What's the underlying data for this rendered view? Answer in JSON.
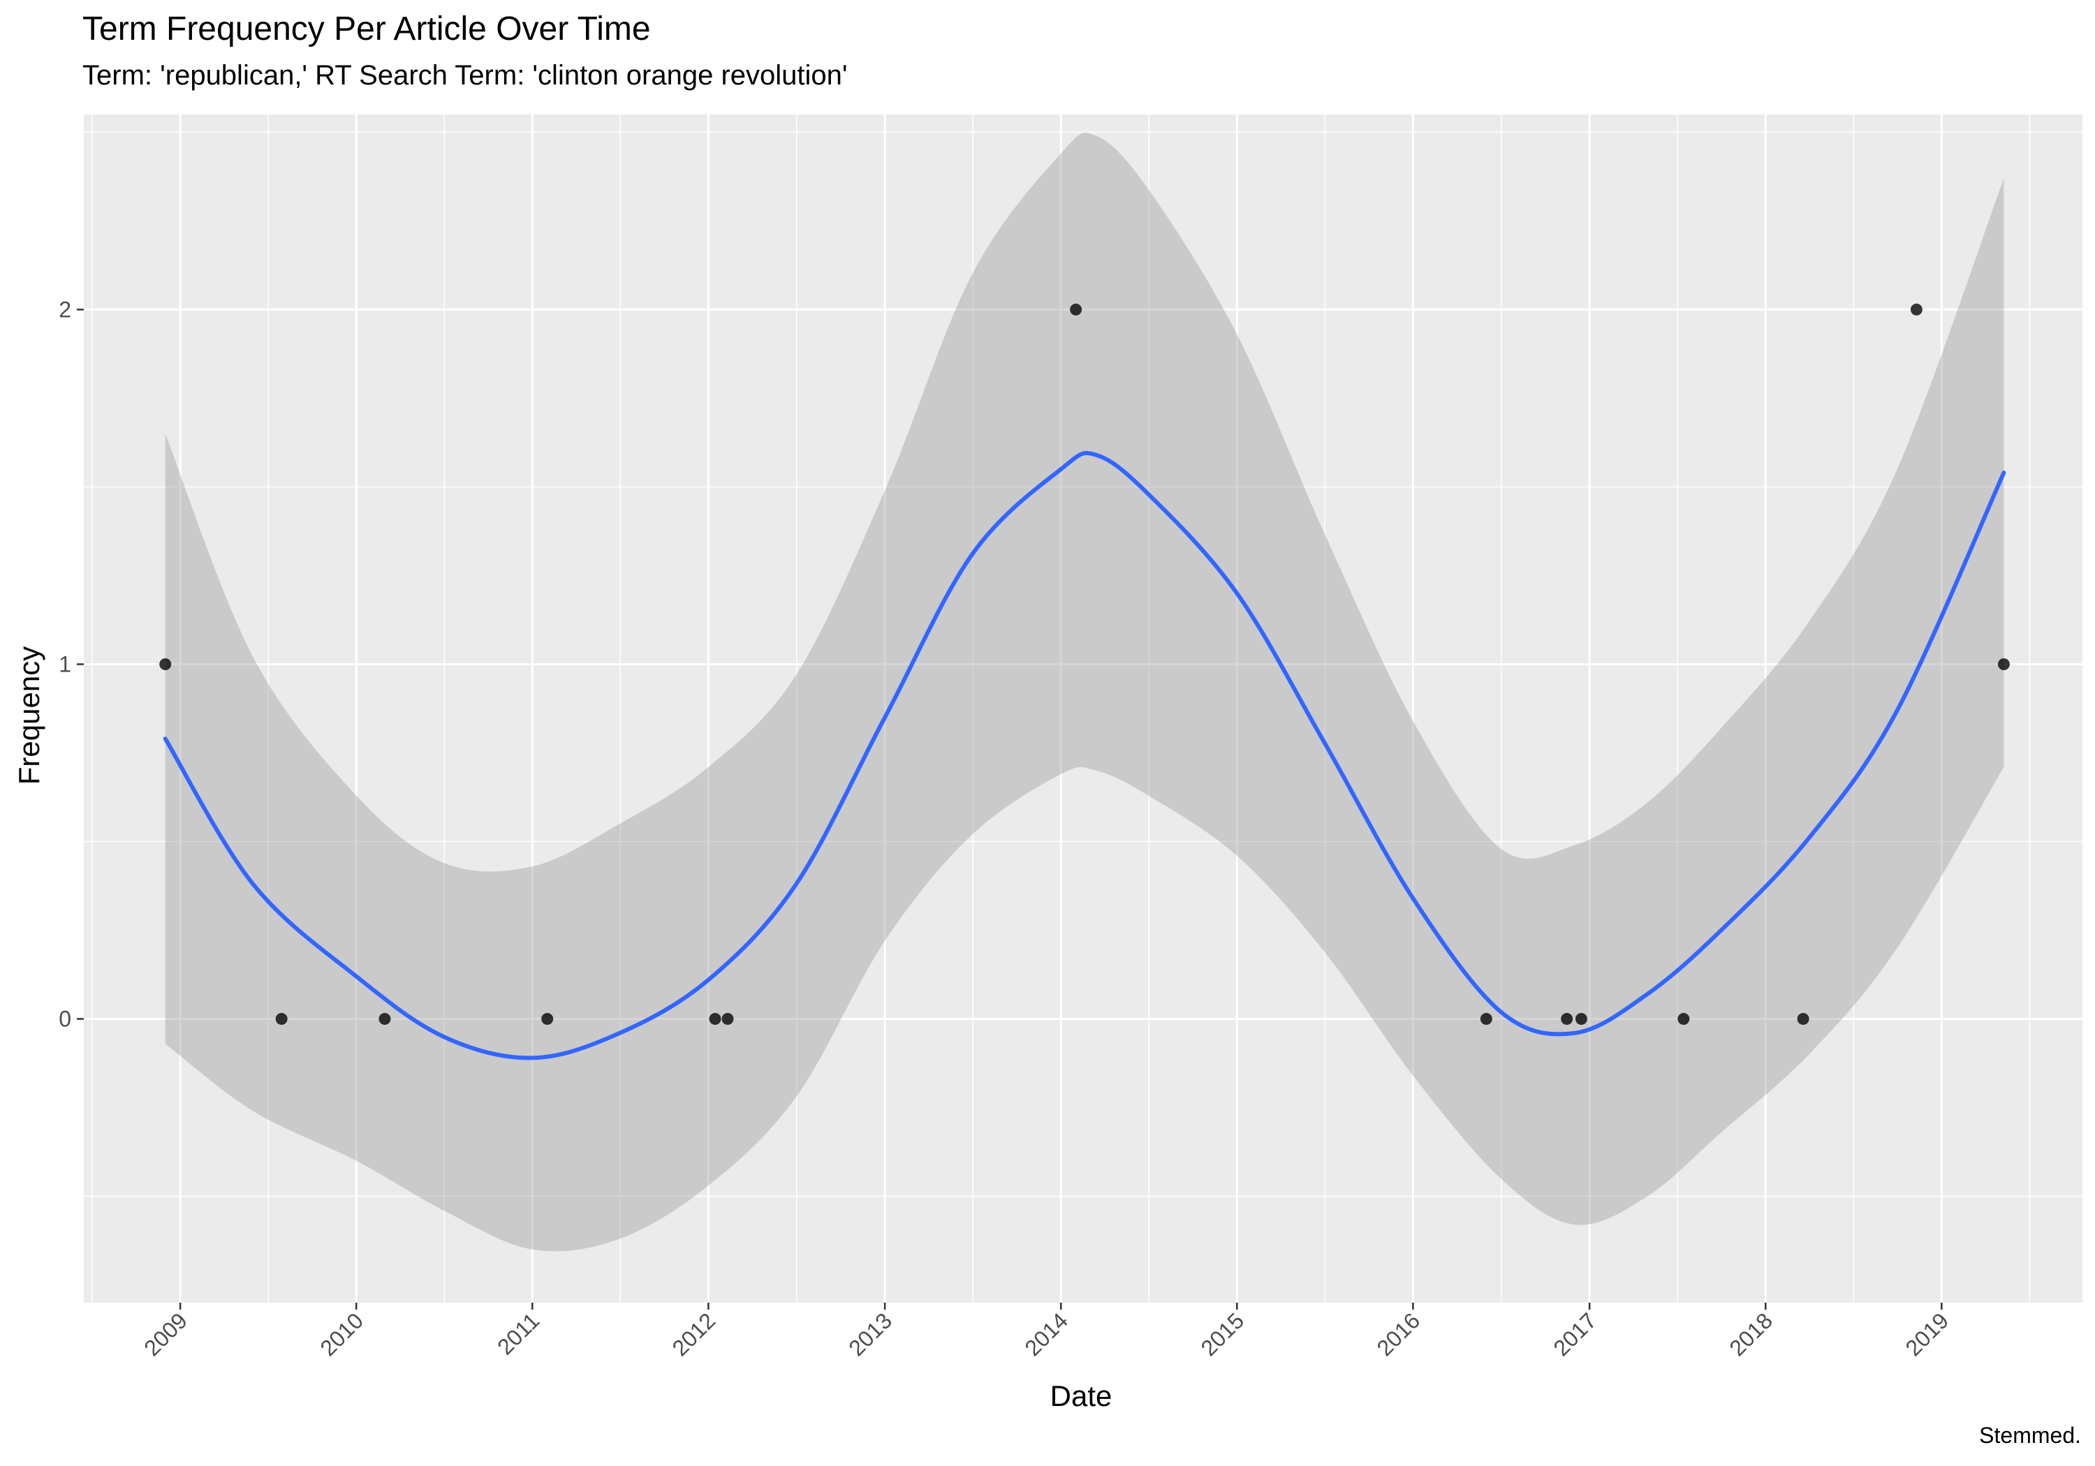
{
  "chart_data": {
    "type": "scatter",
    "title": "Term Frequency Per Article Over Time",
    "subtitle": "Term: 'republican,' RT Search Term: 'clinton orange revolution'",
    "caption": "Stemmed.",
    "xlabel": "Date",
    "ylabel": "Frequency",
    "x_ticks": [
      "2009",
      "2010",
      "2011",
      "2012",
      "2013",
      "2014",
      "2015",
      "2016",
      "2017",
      "2018",
      "2019"
    ],
    "y_ticks": [
      "0",
      "1",
      "2"
    ],
    "xlim": [
      "2008-06-15",
      "2019-10-20"
    ],
    "ylim": [
      -0.8,
      2.55
    ],
    "grid": true,
    "points": [
      {
        "x": "2008-12-01",
        "y": 1
      },
      {
        "x": "2009-07-30",
        "y": 0
      },
      {
        "x": "2010-03-01",
        "y": 0
      },
      {
        "x": "2011-02-01",
        "y": 0
      },
      {
        "x": "2012-01-15",
        "y": 0
      },
      {
        "x": "2012-02-10",
        "y": 0
      },
      {
        "x": "2014-02-01",
        "y": 2
      },
      {
        "x": "2016-06-01",
        "y": 0
      },
      {
        "x": "2016-11-15",
        "y": 0
      },
      {
        "x": "2016-12-15",
        "y": 0
      },
      {
        "x": "2017-07-15",
        "y": 0
      },
      {
        "x": "2018-03-20",
        "y": 0
      },
      {
        "x": "2018-11-10",
        "y": 2
      },
      {
        "x": "2019-05-10",
        "y": 1
      }
    ],
    "smooth": {
      "method": "loess",
      "color": "#3366FF",
      "band_color": "#999999",
      "x": [
        "2008-12-01",
        "2009-06-01",
        "2010-01-01",
        "2010-07-01",
        "2011-01-01",
        "2011-07-01",
        "2012-01-01",
        "2012-07-01",
        "2013-01-01",
        "2013-07-01",
        "2014-01-01",
        "2014-03-15",
        "2014-07-01",
        "2015-01-01",
        "2015-07-01",
        "2016-01-01",
        "2016-07-01",
        "2016-12-01",
        "2017-05-01",
        "2017-10-01",
        "2018-04-01",
        "2018-10-01",
        "2019-05-10"
      ],
      "y": [
        0.79,
        0.38,
        0.12,
        -0.05,
        -0.11,
        -0.04,
        0.11,
        0.38,
        0.85,
        1.31,
        1.55,
        1.59,
        1.48,
        1.2,
        0.78,
        0.34,
        0.02,
        -0.04,
        0.07,
        0.25,
        0.51,
        0.87,
        1.54
      ],
      "ymin": [
        -0.07,
        -0.26,
        -0.4,
        -0.54,
        -0.65,
        -0.62,
        -0.47,
        -0.22,
        0.22,
        0.52,
        0.69,
        0.7,
        0.63,
        0.46,
        0.19,
        -0.16,
        -0.45,
        -0.58,
        -0.5,
        -0.32,
        -0.1,
        0.2,
        0.71
      ],
      "ymax": [
        1.65,
        1.02,
        0.63,
        0.44,
        0.43,
        0.55,
        0.71,
        0.97,
        1.49,
        2.1,
        2.44,
        2.49,
        2.34,
        1.93,
        1.37,
        0.84,
        0.48,
        0.49,
        0.61,
        0.82,
        1.12,
        1.55,
        2.37
      ]
    }
  }
}
